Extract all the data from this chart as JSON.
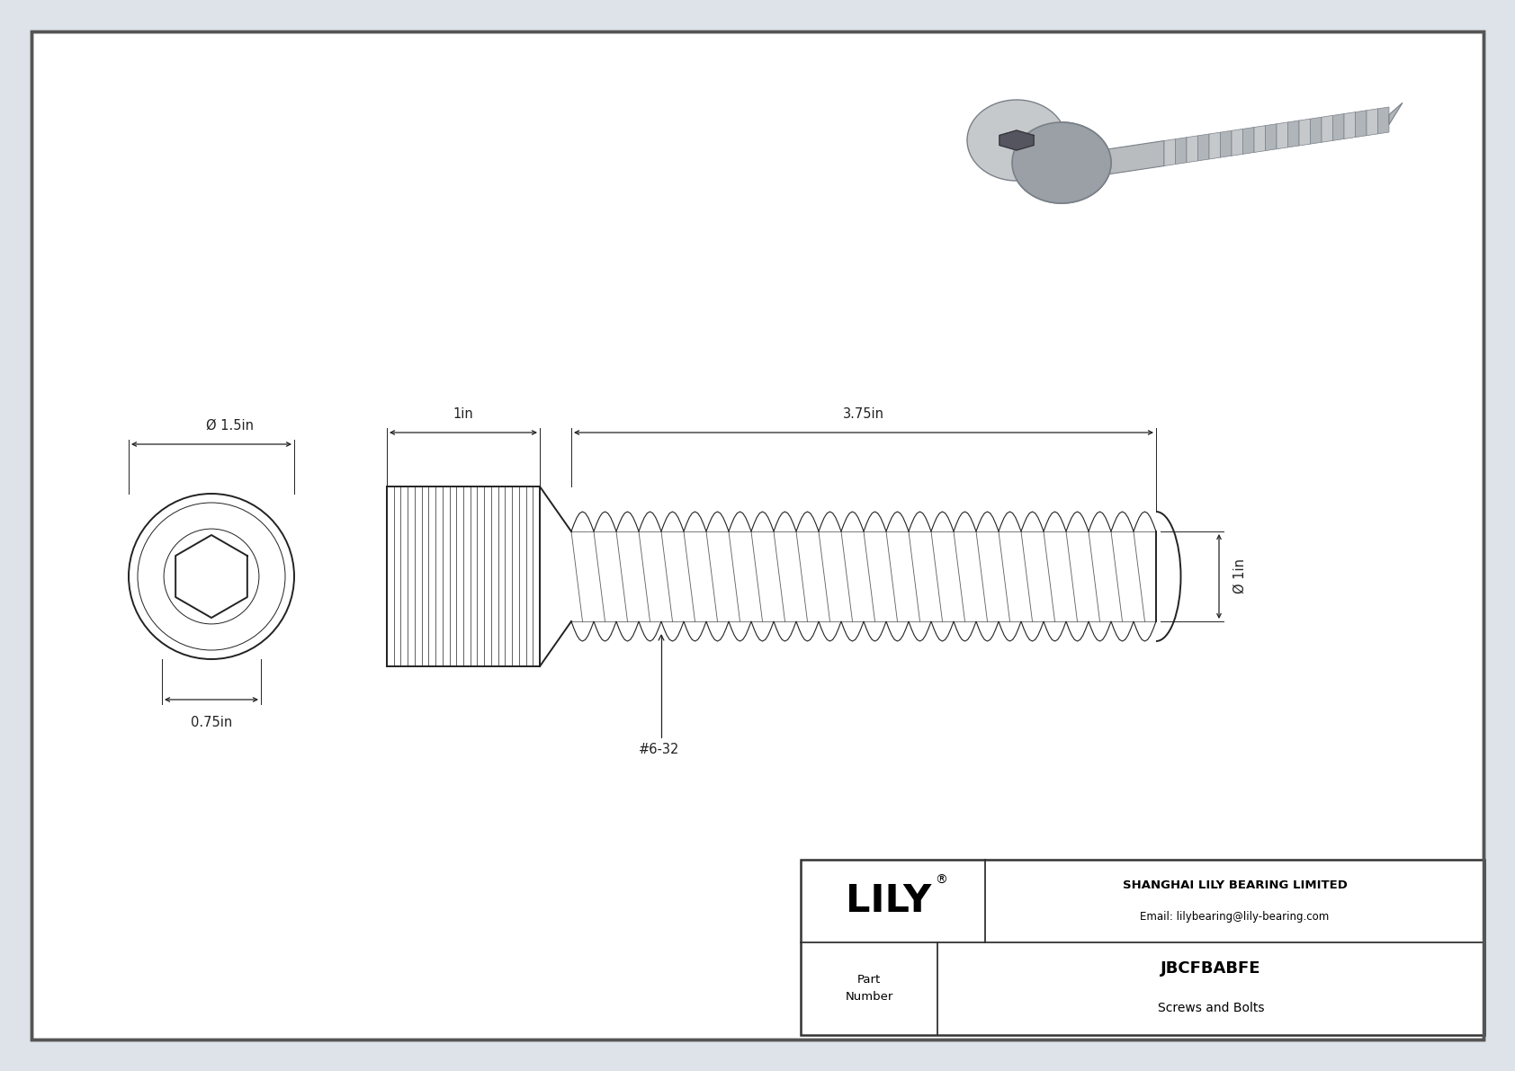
{
  "bg_color": "#dde3e8",
  "drawing_bg": "#f5f7f9",
  "border_color": "#444444",
  "line_color": "#222222",
  "dim_color": "#222222",
  "title": "JBCFBABFE",
  "subtitle": "Screws and Bolts",
  "company": "SHANGHAI LILY BEARING LIMITED",
  "email": "Email: lilybearing@lily-bearing.com",
  "part_label": "Part\nNumber",
  "brand": "LILY",
  "dim_diameter_head": "Ø 1.5in",
  "dim_head_length": "1in",
  "dim_thread_length": "3.75in",
  "dim_body_dia": "Ø 1in",
  "dim_shoulder": "0.75in",
  "thread_label": "#6-32",
  "render_color_head": "#9aa0a6",
  "render_color_thread": "#b0b5ba",
  "render_color_top": "#c5c9cc",
  "render_color_shadow": "#7a8088"
}
